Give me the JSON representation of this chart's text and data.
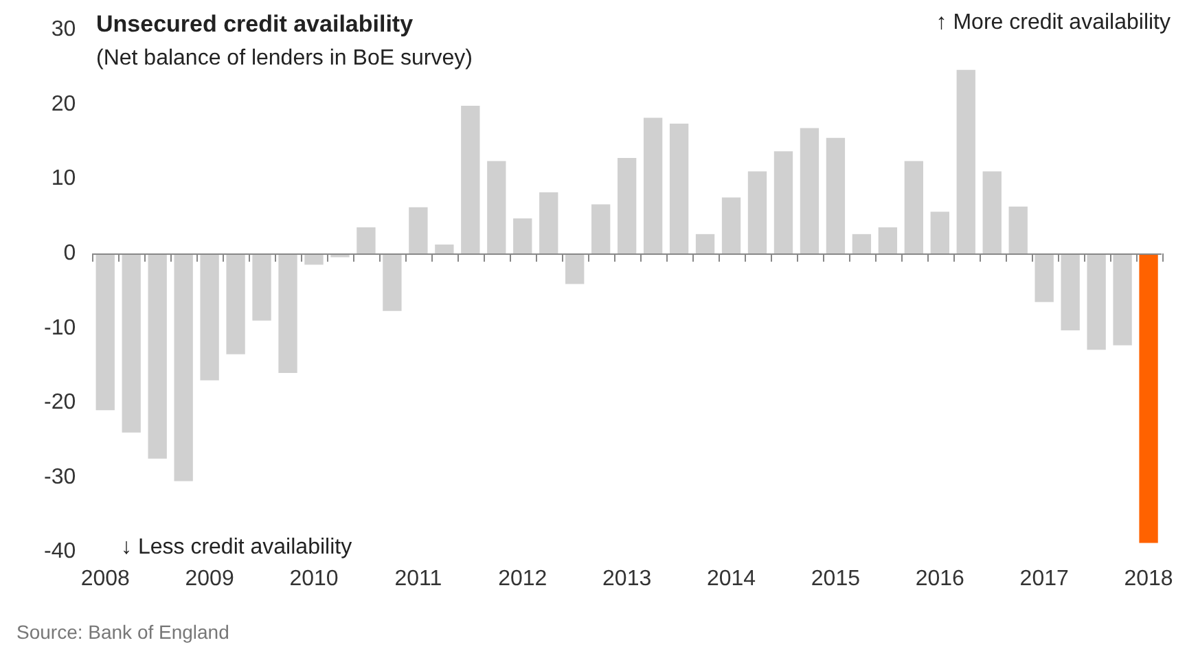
{
  "chart_data": {
    "type": "bar",
    "title": "Unsecured credit availability",
    "subtitle": "(Net balance of lenders in BoE survey)",
    "categories": [
      "2008",
      null,
      null,
      null,
      "2009",
      null,
      null,
      null,
      "2010",
      null,
      null,
      null,
      "2011",
      null,
      null,
      null,
      "2012",
      null,
      null,
      null,
      "2013",
      null,
      null,
      null,
      "2014",
      null,
      null,
      null,
      "2015",
      null,
      null,
      null,
      "2016",
      null,
      null,
      null,
      "2017",
      null,
      null,
      null,
      "2018"
    ],
    "values": [
      -21,
      -24,
      -27.5,
      -30.5,
      -17,
      -13.5,
      -9,
      -16,
      -1.5,
      -0.5,
      3.5,
      -7.7,
      6.2,
      1.2,
      19.8,
      12.4,
      4.7,
      8.2,
      -4.1,
      6.6,
      12.8,
      18.2,
      17.4,
      2.6,
      7.5,
      11,
      13.7,
      16.8,
      15.5,
      2.6,
      3.5,
      12.4,
      5.6,
      24.6,
      11,
      6.3,
      -6.5,
      -10.3,
      -12.9,
      -12.3,
      -38.8
    ],
    "colors": [
      "#d0d0d0",
      "#d0d0d0",
      "#d0d0d0",
      "#d0d0d0",
      "#d0d0d0",
      "#d0d0d0",
      "#d0d0d0",
      "#d0d0d0",
      "#d0d0d0",
      "#d0d0d0",
      "#d0d0d0",
      "#d0d0d0",
      "#d0d0d0",
      "#d0d0d0",
      "#d0d0d0",
      "#d0d0d0",
      "#d0d0d0",
      "#d0d0d0",
      "#d0d0d0",
      "#d0d0d0",
      "#d0d0d0",
      "#d0d0d0",
      "#d0d0d0",
      "#d0d0d0",
      "#d0d0d0",
      "#d0d0d0",
      "#d0d0d0",
      "#d0d0d0",
      "#d0d0d0",
      "#d0d0d0",
      "#d0d0d0",
      "#d0d0d0",
      "#d0d0d0",
      "#d0d0d0",
      "#d0d0d0",
      "#d0d0d0",
      "#d0d0d0",
      "#d0d0d0",
      "#d0d0d0",
      "#d0d0d0",
      "#ff6200"
    ],
    "ylim": [
      -40,
      30
    ],
    "yticks": [
      -40,
      -30,
      -20,
      -10,
      0,
      10,
      20,
      30
    ],
    "legend": false,
    "annotations": [
      "↑ More credit availability",
      "↓ Less credit availability",
      "Source: Bank of England"
    ]
  }
}
